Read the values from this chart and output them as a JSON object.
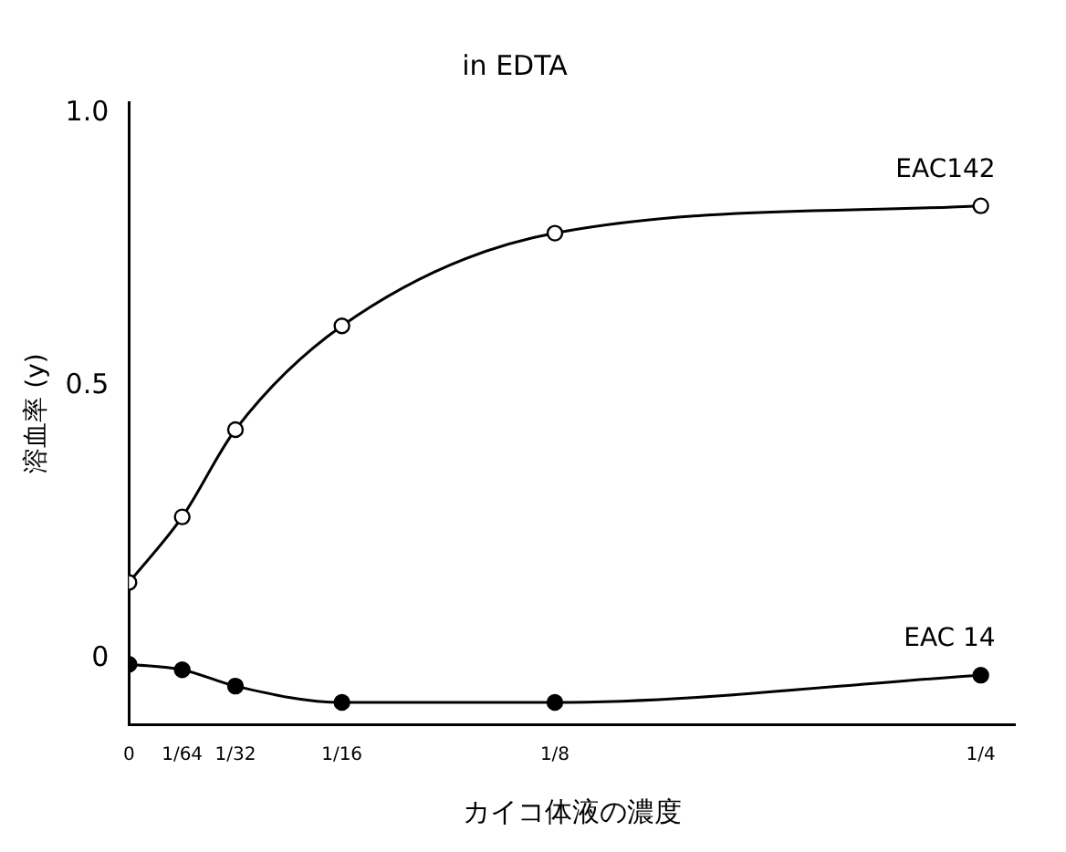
{
  "chart_data": {
    "type": "line",
    "title": "in EDTA",
    "xlabel": "カイコ体液の濃度",
    "ylabel": "溶血率 (y)",
    "x": [
      0,
      0.015625,
      0.03125,
      0.0625,
      0.125,
      0.25
    ],
    "xlim": [
      0,
      0.26
    ],
    "xticks": [
      0,
      {
        "value": 0.015625,
        "label": "1/64"
      },
      {
        "value": 0.03125,
        "label": "1/32"
      },
      {
        "value": 0.0625,
        "label": "1/16"
      },
      {
        "value": 0.125,
        "label": "1/8"
      },
      {
        "value": 0.25,
        "label": "1/4"
      }
    ],
    "ylim": [
      -0.12,
      1.02
    ],
    "yticks": [
      0,
      0.5,
      {
        "value": 1,
        "label": "1.0"
      }
    ],
    "series": [
      {
        "name": "EAC142",
        "color": "#000000",
        "marker": "circle",
        "values": [
          0.14,
          0.26,
          0.42,
          0.61,
          0.78,
          0.83
        ]
      },
      {
        "name": "EAC 14",
        "color": "#000000",
        "marker": "filled-circle",
        "values": [
          -0.01,
          -0.02,
          -0.05,
          -0.08,
          -0.08,
          -0.03
        ]
      }
    ],
    "grid": false,
    "legend": false,
    "line_style": "solid"
  }
}
